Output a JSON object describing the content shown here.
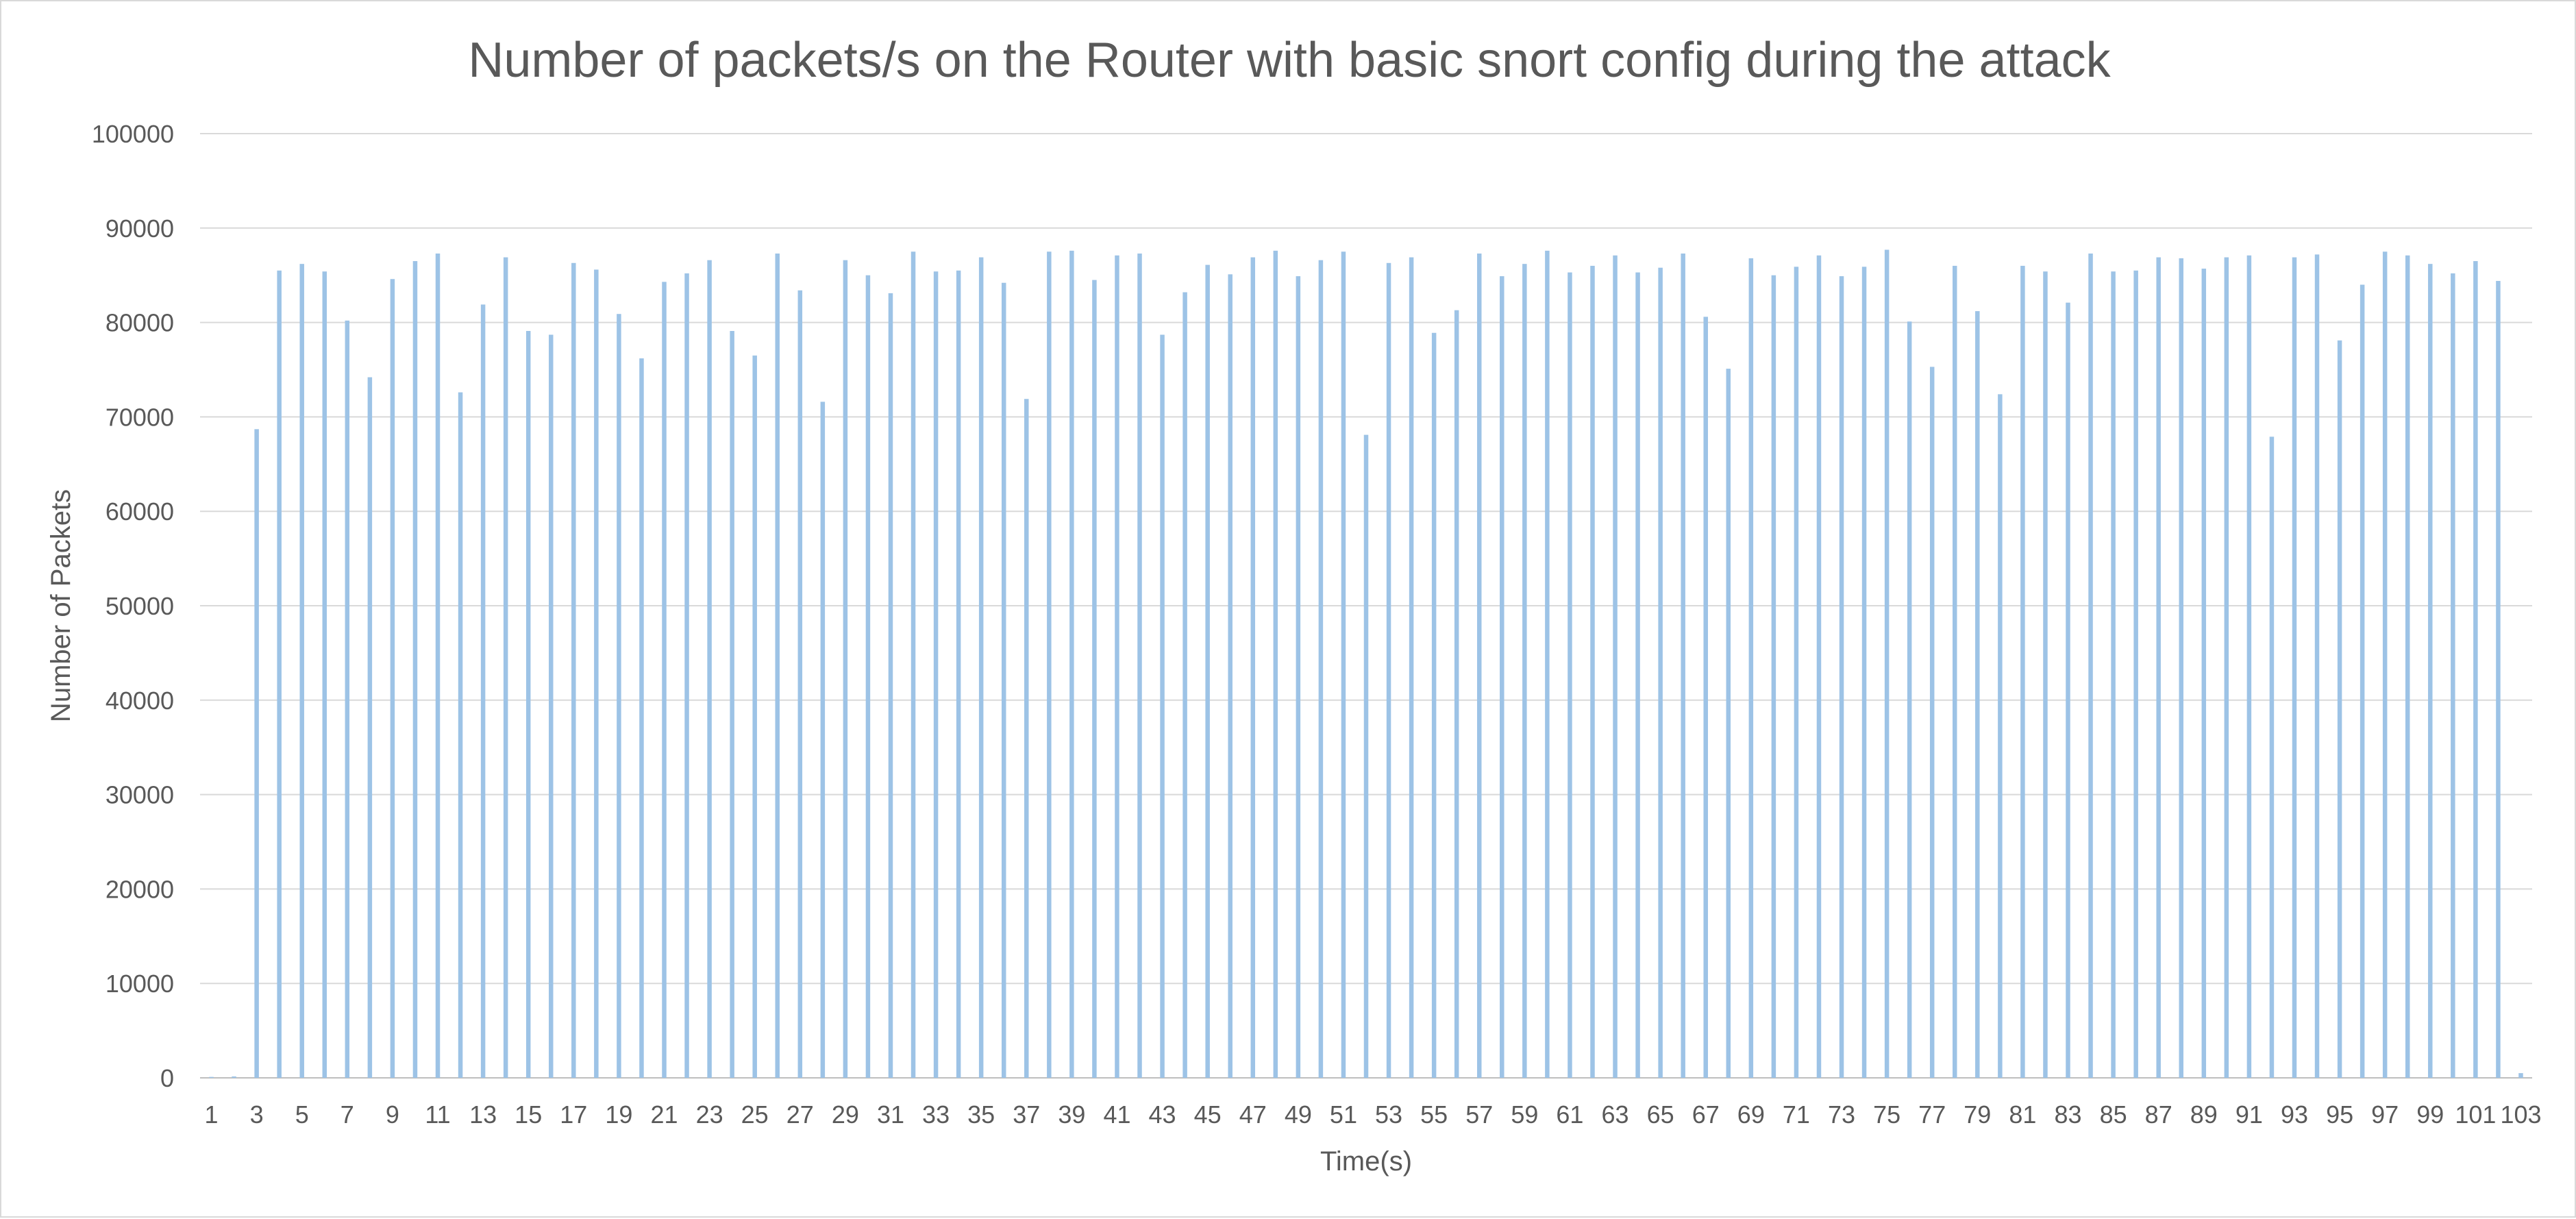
{
  "chart_data": {
    "type": "bar",
    "title": "Number of packets/s on the Router with basic snort config during the attack",
    "xlabel": "Time(s)",
    "ylabel": "Number of Packets",
    "ylim": [
      0,
      100000
    ],
    "yticks": [
      0,
      10000,
      20000,
      30000,
      40000,
      50000,
      60000,
      70000,
      80000,
      90000,
      100000
    ],
    "grid": true,
    "legend": "none",
    "bar_color": "#9dc3e6",
    "categories": [
      1,
      2,
      3,
      4,
      5,
      6,
      7,
      8,
      9,
      10,
      11,
      12,
      13,
      14,
      15,
      16,
      17,
      18,
      19,
      20,
      21,
      22,
      23,
      24,
      25,
      26,
      27,
      28,
      29,
      30,
      31,
      32,
      33,
      34,
      35,
      36,
      37,
      38,
      39,
      40,
      41,
      42,
      43,
      44,
      45,
      46,
      47,
      48,
      49,
      50,
      51,
      52,
      53,
      54,
      55,
      56,
      57,
      58,
      59,
      60,
      61,
      62,
      63,
      64,
      65,
      66,
      67,
      68,
      69,
      70,
      71,
      72,
      73,
      74,
      75,
      76,
      77,
      78,
      79,
      80,
      81,
      82,
      83,
      84,
      85,
      86,
      87,
      88,
      89,
      90,
      91,
      92,
      93,
      94,
      95,
      96,
      97,
      98,
      99,
      100,
      101,
      102,
      103
    ],
    "x_tick_labels": [
      "1",
      "3",
      "5",
      "7",
      "9",
      "11",
      "13",
      "15",
      "17",
      "19",
      "21",
      "23",
      "25",
      "27",
      "29",
      "31",
      "33",
      "35",
      "37",
      "39",
      "41",
      "43",
      "45",
      "47",
      "49",
      "51",
      "53",
      "55",
      "57",
      "59",
      "61",
      "63",
      "65",
      "67",
      "69",
      "71",
      "73",
      "75",
      "77",
      "79",
      "81",
      "83",
      "85",
      "87",
      "89",
      "91",
      "93",
      "95",
      "97",
      "99",
      "101",
      "103"
    ],
    "series": [
      {
        "values": [
          100,
          150,
          68700,
          85500,
          86200,
          85400,
          80200,
          74200,
          84600,
          86500,
          87300,
          72600,
          81900,
          86900,
          79100,
          78700,
          86300,
          85600,
          80900,
          76200,
          84300,
          85200,
          86600,
          79100,
          76500,
          87300,
          83400,
          71600,
          86600,
          85000,
          83100,
          87500,
          85400,
          85500,
          86900,
          84200,
          71900,
          87500,
          87600,
          84500,
          87100,
          87300,
          78700,
          83200,
          86100,
          85100,
          86900,
          87600,
          84900,
          86600,
          87500,
          68100,
          86300,
          86900,
          78900,
          81300,
          87300,
          84900,
          86200,
          87600,
          85300,
          86000,
          87100,
          85300,
          85800,
          87300,
          80600,
          75100,
          86800,
          85000,
          85900,
          87100,
          84900,
          85900,
          87700,
          80100,
          75300,
          86000,
          81200,
          72400,
          86000,
          85400,
          82100,
          87300,
          85400,
          85500,
          86900,
          86800,
          85700,
          86900,
          87100,
          67900,
          86900,
          87200,
          78100,
          84000,
          87500,
          87100,
          86200,
          85200,
          86500,
          84400,
          500
        ]
      }
    ]
  }
}
